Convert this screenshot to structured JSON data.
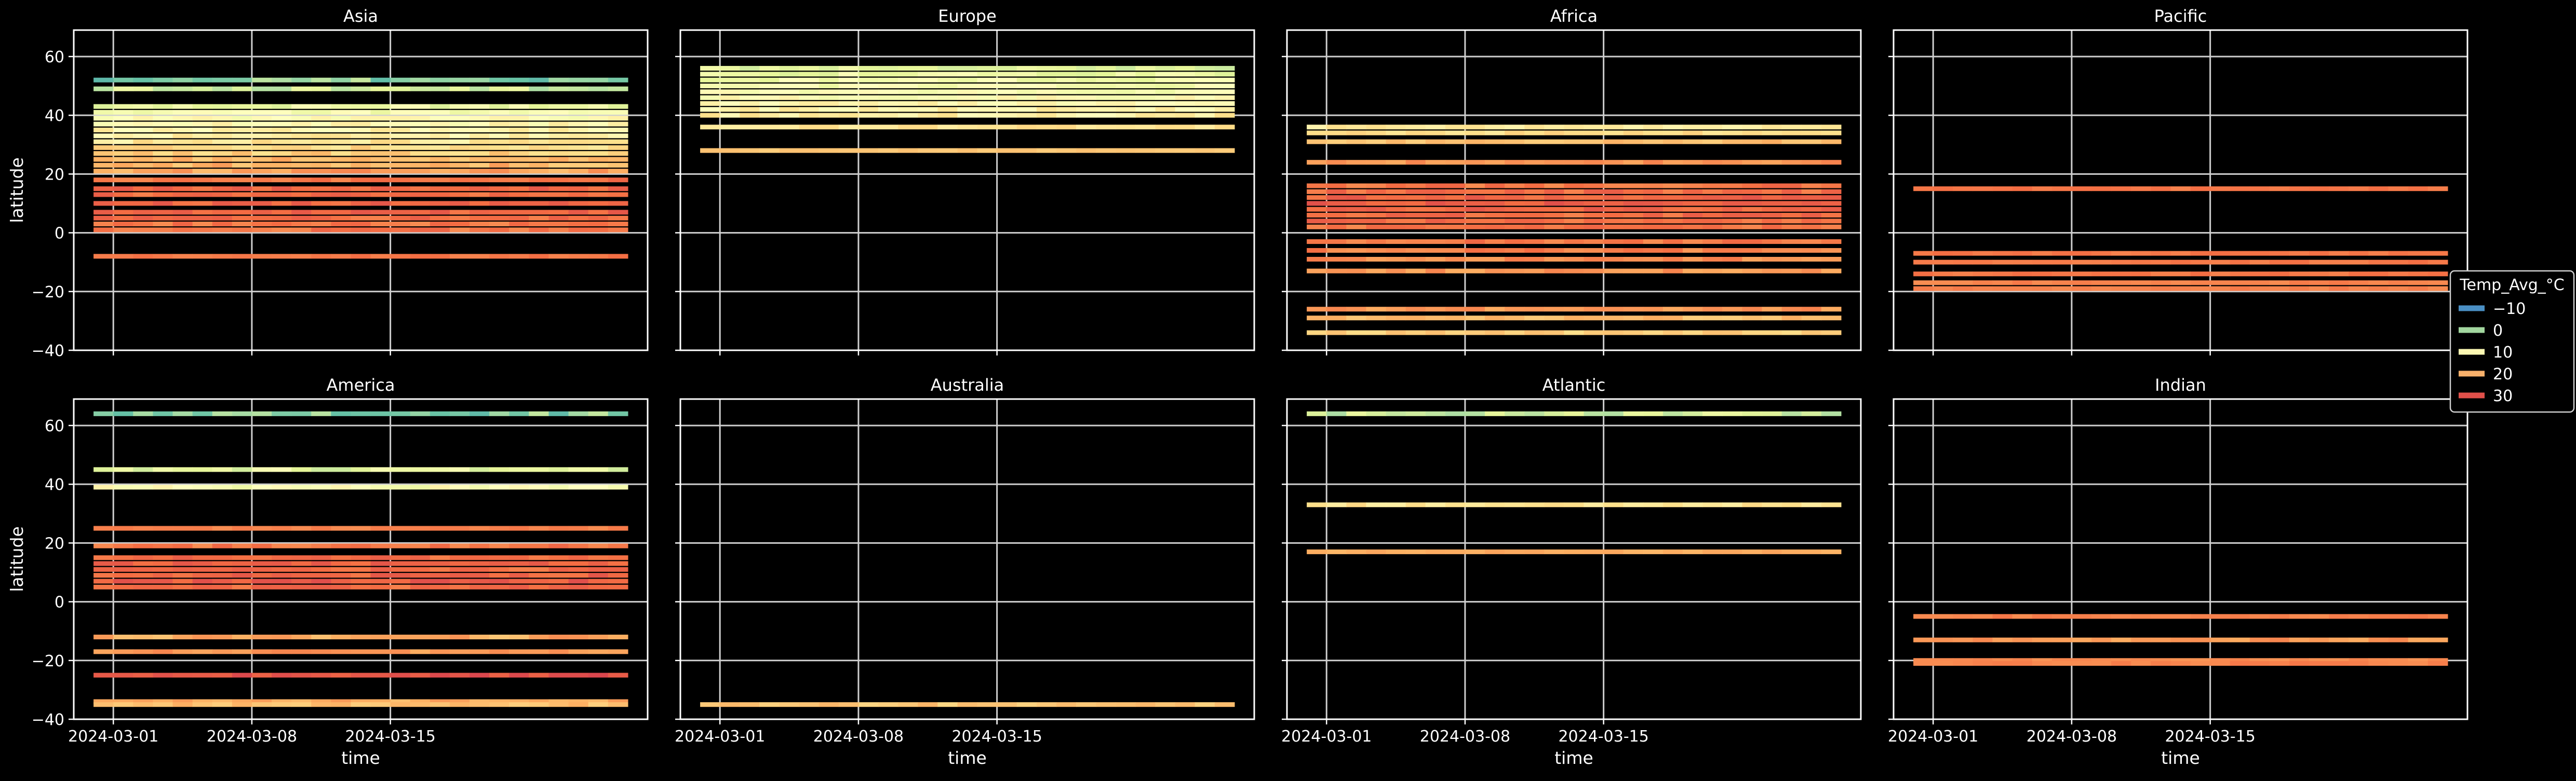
{
  "chart_data": {
    "type": "heatmap",
    "title": "",
    "xlabel": "time",
    "ylabel": "latitude",
    "x_ticks": [
      "2024-03-01",
      "2024-03-08",
      "2024-03-15"
    ],
    "x_range": [
      "2024-02-28",
      "2024-03-28"
    ],
    "y_ticks": [
      -40,
      -20,
      0,
      20,
      40,
      60
    ],
    "ylim": [
      -40,
      69
    ],
    "grid": true,
    "colormap": "Spectral_r",
    "color_range": [
      -20,
      40
    ],
    "legend": {
      "title": "Temp_Avg_°C",
      "placement": "right",
      "entries": [
        {
          "label": "−10",
          "value": -10,
          "color": "#4a8fc4"
        },
        {
          "label": "0",
          "value": 0,
          "color": "#a2d79f"
        },
        {
          "label": "10",
          "value": 10,
          "color": "#fbf7b2"
        },
        {
          "label": "20",
          "value": 20,
          "color": "#f7b06a"
        },
        {
          "label": "30",
          "value": 30,
          "color": "#e0504a"
        }
      ]
    },
    "time_extent": [
      "2024-02-29",
      "2024-03-27"
    ],
    "panels": [
      {
        "name": "Asia",
        "rows": [
          {
            "lat": 52,
            "temp": -4,
            "vary": 5
          },
          {
            "lat": 49,
            "temp": 2,
            "vary": 4
          },
          {
            "lat": 43,
            "temp": 6,
            "vary": 3
          },
          {
            "lat": 41,
            "temp": 8,
            "vary": 3
          },
          {
            "lat": 39,
            "temp": 10,
            "vary": 3
          },
          {
            "lat": 37,
            "temp": 11,
            "vary": 3
          },
          {
            "lat": 35,
            "temp": 12,
            "vary": 3
          },
          {
            "lat": 33,
            "temp": 13,
            "vary": 3
          },
          {
            "lat": 31,
            "temp": 14,
            "vary": 3
          },
          {
            "lat": 29,
            "temp": 16,
            "vary": 3
          },
          {
            "lat": 27,
            "temp": 18,
            "vary": 3
          },
          {
            "lat": 25,
            "temp": 20,
            "vary": 3
          },
          {
            "lat": 23,
            "temp": 21,
            "vary": 3
          },
          {
            "lat": 21,
            "temp": 23,
            "vary": 3
          },
          {
            "lat": 18,
            "temp": 27,
            "vary": 2
          },
          {
            "lat": 15,
            "temp": 29,
            "vary": 2
          },
          {
            "lat": 13,
            "temp": 28,
            "vary": 2
          },
          {
            "lat": 10,
            "temp": 29,
            "vary": 2
          },
          {
            "lat": 7,
            "temp": 29,
            "vary": 2
          },
          {
            "lat": 5,
            "temp": 28,
            "vary": 2
          },
          {
            "lat": 3,
            "temp": 27,
            "vary": 2
          },
          {
            "lat": 1,
            "temp": 27,
            "vary": 2
          },
          {
            "lat": -8,
            "temp": 27,
            "vary": 1
          }
        ]
      },
      {
        "name": "Europe",
        "rows": [
          {
            "lat": 56,
            "temp": 4,
            "vary": 3
          },
          {
            "lat": 54,
            "temp": 6,
            "vary": 3
          },
          {
            "lat": 52,
            "temp": 7,
            "vary": 3
          },
          {
            "lat": 50,
            "temp": 8,
            "vary": 3
          },
          {
            "lat": 48,
            "temp": 9,
            "vary": 3
          },
          {
            "lat": 46,
            "temp": 10,
            "vary": 3
          },
          {
            "lat": 44,
            "temp": 11,
            "vary": 3
          },
          {
            "lat": 42,
            "temp": 12,
            "vary": 3
          },
          {
            "lat": 40,
            "temp": 13,
            "vary": 3
          },
          {
            "lat": 36,
            "temp": 15,
            "vary": 2
          },
          {
            "lat": 28,
            "temp": 19,
            "vary": 1
          }
        ]
      },
      {
        "name": "Africa",
        "rows": [
          {
            "lat": 36,
            "temp": 14,
            "vary": 2
          },
          {
            "lat": 34,
            "temp": 16,
            "vary": 2
          },
          {
            "lat": 31,
            "temp": 20,
            "vary": 2
          },
          {
            "lat": 24,
            "temp": 24,
            "vary": 2
          },
          {
            "lat": 16,
            "temp": 27,
            "vary": 2
          },
          {
            "lat": 14,
            "temp": 28,
            "vary": 2
          },
          {
            "lat": 12,
            "temp": 29,
            "vary": 2
          },
          {
            "lat": 10,
            "temp": 30,
            "vary": 2
          },
          {
            "lat": 8,
            "temp": 29,
            "vary": 2
          },
          {
            "lat": 6,
            "temp": 28,
            "vary": 2
          },
          {
            "lat": 4,
            "temp": 28,
            "vary": 2
          },
          {
            "lat": 2,
            "temp": 27,
            "vary": 2
          },
          {
            "lat": -3,
            "temp": 27,
            "vary": 2
          },
          {
            "lat": -6,
            "temp": 26,
            "vary": 2
          },
          {
            "lat": -9,
            "temp": 25,
            "vary": 2
          },
          {
            "lat": -13,
            "temp": 24,
            "vary": 2
          },
          {
            "lat": -26,
            "temp": 24,
            "vary": 2
          },
          {
            "lat": -29,
            "temp": 20,
            "vary": 2
          },
          {
            "lat": -34,
            "temp": 18,
            "vary": 2
          }
        ]
      },
      {
        "name": "Pacific",
        "rows": [
          {
            "lat": 15,
            "temp": 27,
            "vary": 1
          },
          {
            "lat": -7,
            "temp": 27,
            "vary": 1
          },
          {
            "lat": -10,
            "temp": 27,
            "vary": 1
          },
          {
            "lat": -14,
            "temp": 27,
            "vary": 1
          },
          {
            "lat": -17,
            "temp": 26,
            "vary": 1
          },
          {
            "lat": -19,
            "temp": 26,
            "vary": 1
          }
        ]
      },
      {
        "name": "America",
        "rows": [
          {
            "lat": 64,
            "temp": -4,
            "vary": 5
          },
          {
            "lat": 45,
            "temp": 5,
            "vary": 4
          },
          {
            "lat": 39,
            "temp": 9,
            "vary": 4
          },
          {
            "lat": 25,
            "temp": 26,
            "vary": 1
          },
          {
            "lat": 19,
            "temp": 27,
            "vary": 2
          },
          {
            "lat": 15,
            "temp": 28,
            "vary": 2
          },
          {
            "lat": 13,
            "temp": 29,
            "vary": 2
          },
          {
            "lat": 11,
            "temp": 28,
            "vary": 2
          },
          {
            "lat": 9,
            "temp": 29,
            "vary": 2
          },
          {
            "lat": 7,
            "temp": 30,
            "vary": 2
          },
          {
            "lat": 5,
            "temp": 28,
            "vary": 2
          },
          {
            "lat": -12,
            "temp": 22,
            "vary": 3
          },
          {
            "lat": -17,
            "temp": 24,
            "vary": 2
          },
          {
            "lat": -25,
            "temp": 31,
            "vary": 2
          },
          {
            "lat": -34,
            "temp": 22,
            "vary": 2
          },
          {
            "lat": -35,
            "temp": 20,
            "vary": 2
          }
        ]
      },
      {
        "name": "Australia",
        "rows": [
          {
            "lat": -35,
            "temp": 19,
            "vary": 2
          }
        ]
      },
      {
        "name": "Atlantic",
        "rows": [
          {
            "lat": 64,
            "temp": 2,
            "vary": 4
          },
          {
            "lat": 33,
            "temp": 15,
            "vary": 2
          },
          {
            "lat": 17,
            "temp": 22,
            "vary": 1
          }
        ]
      },
      {
        "name": "Indian",
        "rows": [
          {
            "lat": -5,
            "temp": 26,
            "vary": 1
          },
          {
            "lat": -13,
            "temp": 24,
            "vary": 2
          },
          {
            "lat": -20,
            "temp": 25,
            "vary": 1
          },
          {
            "lat": -21,
            "temp": 26,
            "vary": 1
          }
        ]
      }
    ]
  }
}
